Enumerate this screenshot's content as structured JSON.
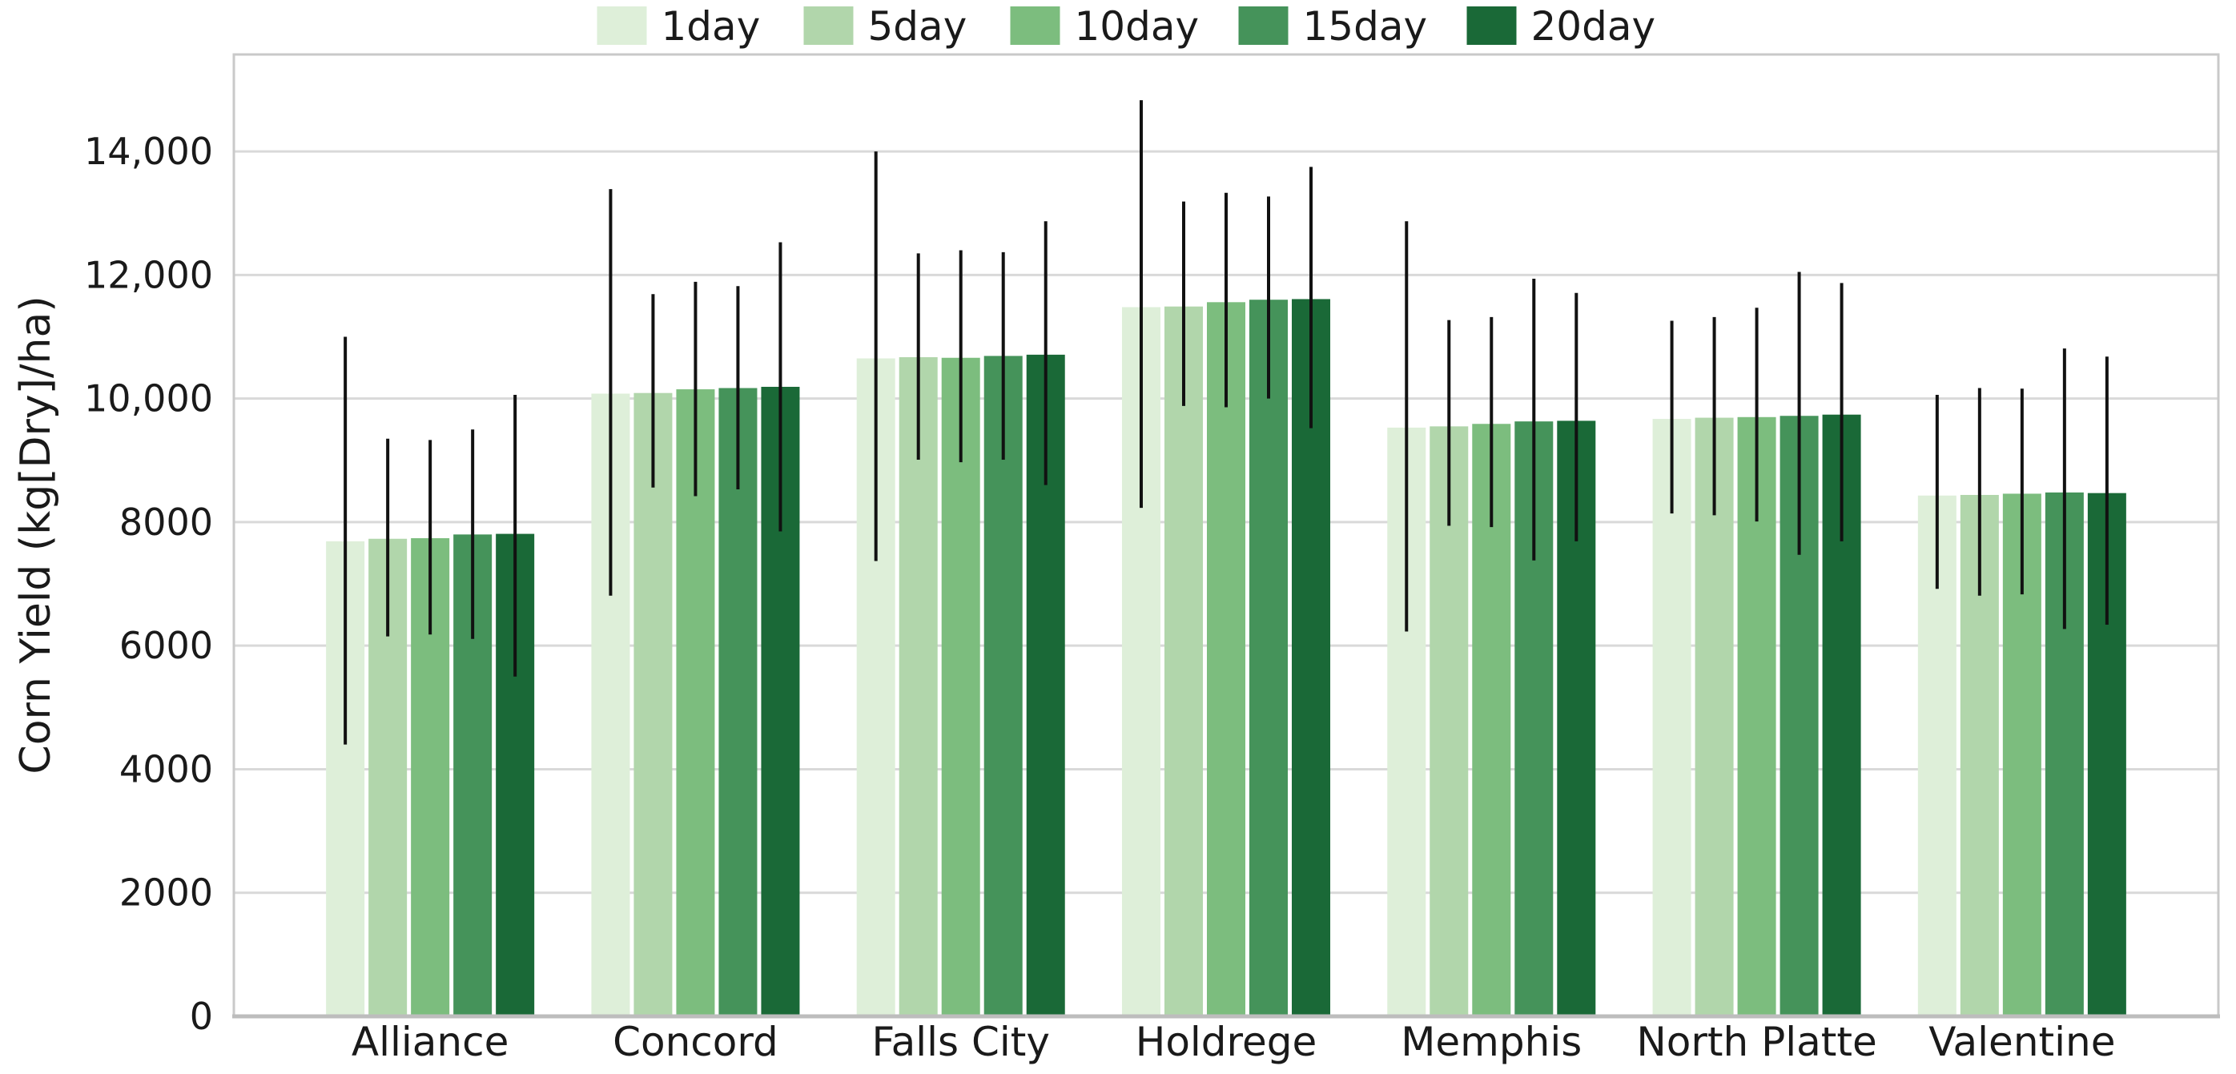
{
  "chart_data": {
    "type": "bar",
    "title": "",
    "xlabel": "",
    "ylabel": "Corn Yield (kg[Dry]/ha)",
    "categories": [
      "Alliance",
      "Concord",
      "Falls City",
      "Holdrege",
      "Memphis",
      "North Platte",
      "Valentine"
    ],
    "series": [
      {
        "name": "1day",
        "color": "#deefd9",
        "values": [
          7690,
          10080,
          10650,
          11480,
          9530,
          9670,
          8430
        ],
        "error_ranges": [
          [
            4400,
            11000
          ],
          [
            6810,
            13390
          ],
          [
            7370,
            14000
          ],
          [
            8230,
            14830
          ],
          [
            6230,
            12870
          ],
          [
            8140,
            11260
          ],
          [
            6920,
            10060
          ]
        ]
      },
      {
        "name": "5day",
        "color": "#b1d6ab",
        "values": [
          7730,
          10090,
          10670,
          11490,
          9550,
          9690,
          8440
        ],
        "error_ranges": [
          [
            6150,
            9350
          ],
          [
            8560,
            11690
          ],
          [
            9010,
            12350
          ],
          [
            9880,
            13190
          ],
          [
            7940,
            11270
          ],
          [
            8110,
            11320
          ],
          [
            6810,
            10170
          ]
        ]
      },
      {
        "name": "10day",
        "color": "#7cbd7e",
        "values": [
          7740,
          10150,
          10660,
          11560,
          9590,
          9700,
          8460
        ],
        "error_ranges": [
          [
            6180,
            9330
          ],
          [
            8420,
            11890
          ],
          [
            8970,
            12400
          ],
          [
            9860,
            13330
          ],
          [
            7920,
            11320
          ],
          [
            8010,
            11470
          ],
          [
            6830,
            10160
          ]
        ]
      },
      {
        "name": "15day",
        "color": "#45935a",
        "values": [
          7800,
          10170,
          10690,
          11600,
          9630,
          9720,
          8480
        ],
        "error_ranges": [
          [
            6110,
            9500
          ],
          [
            8530,
            11820
          ],
          [
            9010,
            12370
          ],
          [
            10000,
            13270
          ],
          [
            7380,
            11940
          ],
          [
            7470,
            12050
          ],
          [
            6270,
            10810
          ]
        ]
      },
      {
        "name": "20day",
        "color": "#1a6937",
        "values": [
          7810,
          10190,
          10710,
          11610,
          9640,
          9740,
          8470
        ],
        "error_ranges": [
          [
            5500,
            10060
          ],
          [
            7850,
            12530
          ],
          [
            8600,
            12870
          ],
          [
            9520,
            13750
          ],
          [
            7690,
            11710
          ],
          [
            7690,
            11870
          ],
          [
            6340,
            10680
          ]
        ]
      }
    ],
    "ylim": [
      0,
      15570
    ],
    "yticks": [
      {
        "value": 0,
        "label": "0"
      },
      {
        "value": 2000,
        "label": "2000"
      },
      {
        "value": 4000,
        "label": "4000"
      },
      {
        "value": 6000,
        "label": "6000"
      },
      {
        "value": 8000,
        "label": "8000"
      },
      {
        "value": 10000,
        "label": "10,000"
      },
      {
        "value": 12000,
        "label": "12,000"
      },
      {
        "value": 14000,
        "label": "14,000"
      }
    ],
    "grid": "horizontal",
    "legend_position": "top-center",
    "style": {
      "grid_color": "#d9d9d9",
      "spine_color": "#c9c9c9",
      "bottom_spine_color": "#bdbdbd",
      "text_color": "#1a1a1a",
      "error_bar_color": "#111111",
      "background": "#ffffff"
    }
  }
}
